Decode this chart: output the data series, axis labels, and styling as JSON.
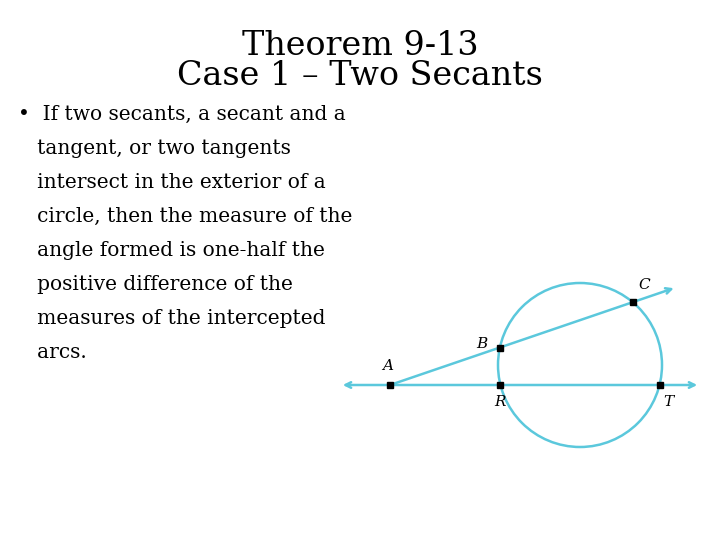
{
  "title_line1": "Theorem 9-13",
  "title_line2": "Case 1 – Two Secants",
  "title_fontsize": 24,
  "body_lines": [
    "•  If two secants, a secant and a",
    "   tangent, or two tangents",
    "   intersect in the exterior of a",
    "   circle, then the measure of the",
    "   angle formed is one-half the",
    "   positive difference of the",
    "   measures of the intercepted",
    "   arcs."
  ],
  "body_fontsize": 14.5,
  "bg_color": "#ffffff",
  "diagram_color": "#5bc8dc",
  "label_fontsize": 11
}
